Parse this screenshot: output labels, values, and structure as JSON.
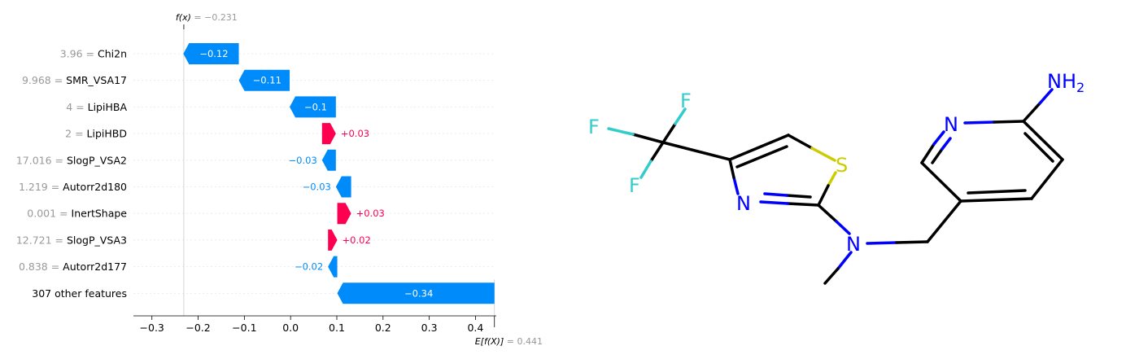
{
  "chart_data": {
    "type": "waterfall",
    "features": [
      {
        "value": "3.96",
        "name": "Chi2n",
        "shap": -0.12,
        "label": "−0.12"
      },
      {
        "value": "9.968",
        "name": "SMR_VSA17",
        "shap": -0.11,
        "label": "−0.11"
      },
      {
        "value": "4",
        "name": "LipiHBA",
        "shap": -0.1,
        "label": "−0.1"
      },
      {
        "value": "2",
        "name": "LipiHBD",
        "shap": 0.03,
        "label": "+0.03"
      },
      {
        "value": "17.016",
        "name": "SlogP_VSA2",
        "shap": -0.03,
        "label": "−0.03"
      },
      {
        "value": "1.219",
        "name": "Autorr2d180",
        "shap": -0.033,
        "label": "−0.03"
      },
      {
        "value": "0.001",
        "name": "InertShape",
        "shap": 0.03,
        "label": "+0.03"
      },
      {
        "value": "12.721",
        "name": "SlogP_VSA3",
        "shap": 0.02,
        "label": "+0.02"
      },
      {
        "value": "0.838",
        "name": "Autorr2d177",
        "shap": -0.02,
        "label": "−0.02"
      },
      {
        "value": "",
        "name": "307 other features",
        "shap": -0.34,
        "label": "−0.34"
      }
    ],
    "fx": {
      "label_prefix": "f(x)",
      "label_value": " = −0.231",
      "value": -0.231
    },
    "base": {
      "label_prefix": "E[f(X)]",
      "label_value": " = 0.441",
      "value": 0.441
    },
    "xticks": [
      -0.3,
      -0.2,
      -0.1,
      0.0,
      0.1,
      0.2,
      0.3,
      0.4
    ],
    "xtick_labels": [
      "−0.3",
      "−0.2",
      "−0.1",
      "0.0",
      "0.1",
      "0.2",
      "0.3",
      "0.4"
    ],
    "xlim": [
      -0.34,
      0.445
    ],
    "colors": {
      "negative": "#008bfb",
      "positive": "#ff0051",
      "label_muted": "#999999",
      "gridline": "#cccccc"
    }
  },
  "molecule": {
    "atoms": [
      "F",
      "F",
      "F",
      "S",
      "N",
      "N",
      "N",
      "NH",
      "2"
    ],
    "colors": {
      "F": "#33cccc",
      "S": "#cccc00",
      "N": "#0000ff",
      "bond": "#000000"
    }
  }
}
